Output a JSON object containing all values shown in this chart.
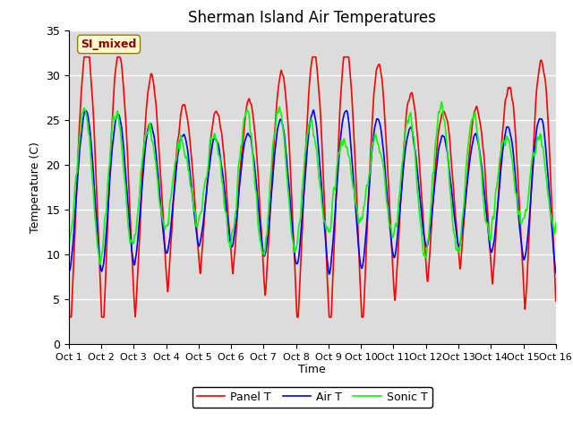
{
  "title": "Sherman Island Air Temperatures",
  "xlabel": "Time",
  "ylabel": "Temperature (C)",
  "ylim": [
    0,
    35
  ],
  "xlim": [
    0,
    15
  ],
  "xtick_labels": [
    "Oct 1",
    "Oct 2",
    "Oct 3",
    "Oct 4",
    "Oct 5",
    "Oct 6",
    "Oct 7",
    "Oct 8",
    "Oct 9",
    "Oct 10",
    "Oct 11",
    "Oct 12",
    "Oct 13",
    "Oct 14",
    "Oct 15",
    "Oct 16"
  ],
  "ytick_labels": [
    "0",
    "5",
    "10",
    "15",
    "20",
    "25",
    "30",
    "35"
  ],
  "ytick_values": [
    0,
    5,
    10,
    15,
    20,
    25,
    30,
    35
  ],
  "legend_labels": [
    "Panel T",
    "Air T",
    "Sonic T"
  ],
  "line_colors": [
    "red",
    "blue",
    "lime"
  ],
  "annotation_text": "SI_mixed",
  "annotation_color": "#8B0000",
  "annotation_bg": "#FFFACD",
  "bg_color": "#DCDCDC",
  "title_fontsize": 12,
  "axis_fontsize": 9,
  "legend_fontsize": 9,
  "linewidth": 1.2
}
